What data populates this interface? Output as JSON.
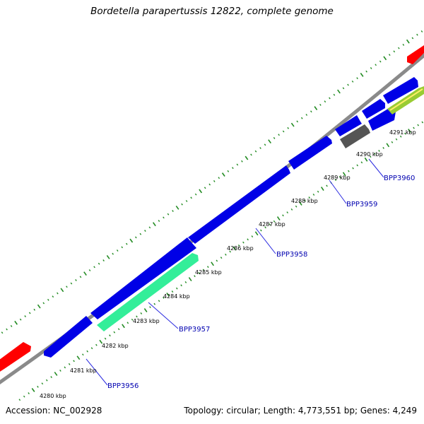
{
  "title": "Bordetella parapertussis 12822, complete genome",
  "footer": {
    "accession": "Accession: NC_002928",
    "summary": "Topology: circular; Length: 4,773,551 bp; Genes: 4,249"
  },
  "colors": {
    "backbone": "#8a8a8a",
    "cds": "#0000e6",
    "red_feature": "#ff0000",
    "highlight": "#33ee99",
    "gray_feature": "#555555",
    "tick": "#228b22",
    "label_line": "#2a2ae0",
    "label_text": "#0000b0"
  },
  "scale": {
    "labels": [
      "4280 kbp",
      "4281 kbp",
      "4282 kbp",
      "4283 kbp",
      "4284 kbp",
      "4285 kbp",
      "4286 kbp",
      "4287 kbp",
      "4288 kbp",
      "4289 kbp",
      "4290 kbp",
      "4291 kbp"
    ]
  },
  "gene_labels": [
    "BPP3956",
    "BPP3957",
    "BPP3958",
    "BPP3959",
    "BPP3960"
  ]
}
